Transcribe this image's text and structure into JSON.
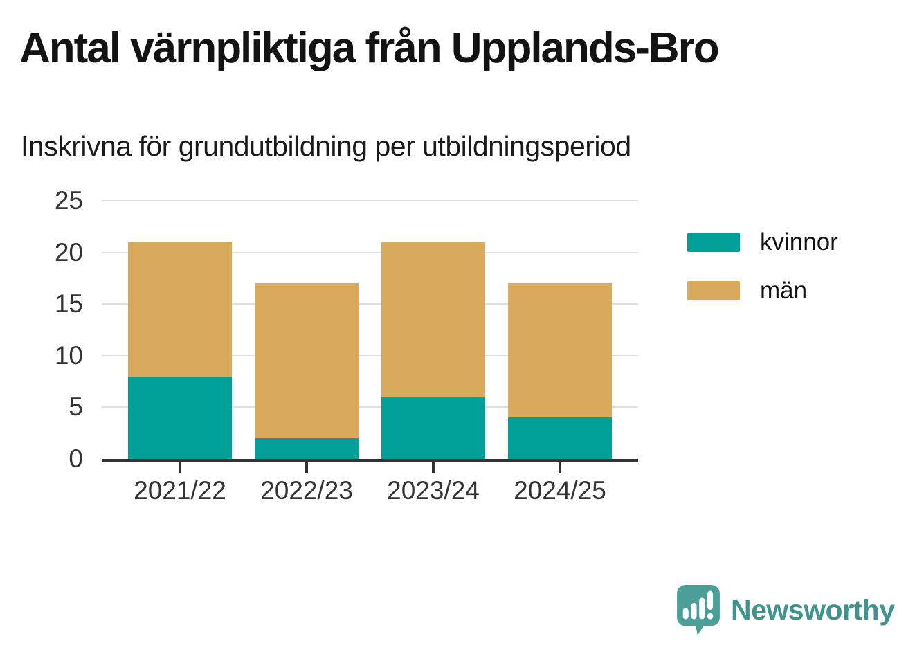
{
  "header": {
    "title": "Antal värnpliktiga från Upplands-Bro",
    "subtitle": "Inskrivna för grundutbildning per utbildningsperiod"
  },
  "chart_data": {
    "type": "bar",
    "stacked": true,
    "title": "Antal värnpliktiga från Upplands-Bro",
    "subtitle": "Inskrivna för grundutbildning per utbildningsperiod",
    "categories": [
      "2021/22",
      "2022/23",
      "2023/24",
      "2024/25"
    ],
    "series": [
      {
        "name": "kvinnor",
        "color": "#00A098",
        "values": [
          8,
          2,
          6,
          4
        ]
      },
      {
        "name": "män",
        "color": "#D9A95C",
        "values": [
          13,
          15,
          15,
          13
        ]
      }
    ],
    "totals": [
      21,
      17,
      21,
      17
    ],
    "xlabel": "",
    "ylabel": "",
    "ylim": [
      0,
      25
    ],
    "yticks": [
      0,
      5,
      10,
      15,
      20,
      25
    ],
    "grid": true,
    "legend_position": "right",
    "gridline_color": "#dedede",
    "axis_color": "#333333"
  },
  "branding": {
    "logo_text": "Newsworthy",
    "logo_text_color": "#3F948E",
    "logo_bubble_color": "#4C9F99"
  }
}
